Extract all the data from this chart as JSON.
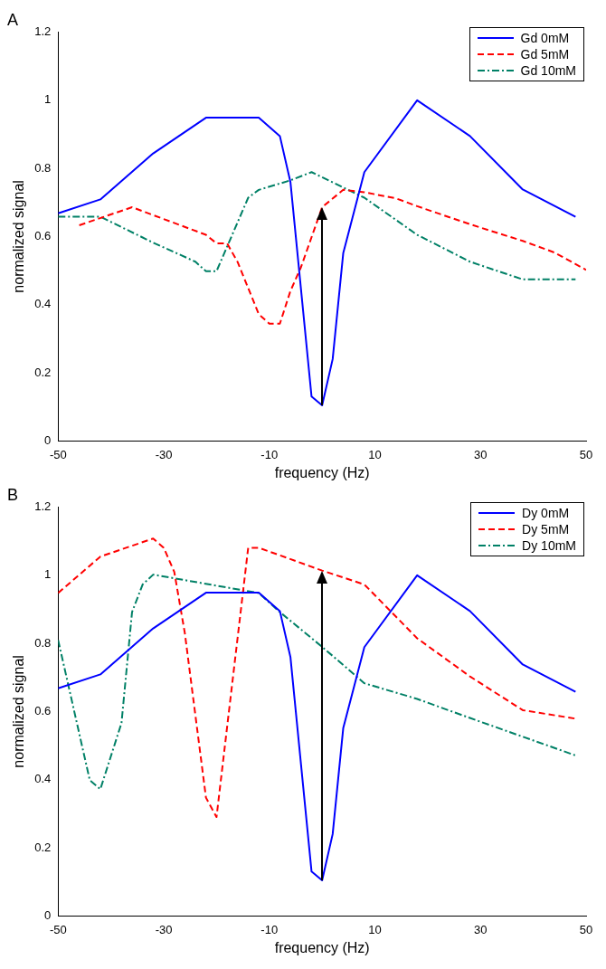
{
  "chart_data": [
    {
      "type": "line",
      "title": "A",
      "xlabel": "frequency (Hz)",
      "ylabel": "normalized signal",
      "xlim": [
        -50,
        50
      ],
      "xticks": [
        -50,
        -30,
        -10,
        10,
        30,
        50
      ],
      "ylim": [
        0,
        1.2
      ],
      "yticks": [
        0,
        0.2,
        0.4,
        0.6,
        0.8,
        1,
        1.2
      ],
      "legend": "top right",
      "series": [
        {
          "name": "Gd 0mM",
          "color": "#0000ff",
          "line_style": "solid",
          "x": [
            -50,
            -42,
            -32,
            -22,
            -12,
            -8,
            -6,
            -2,
            0,
            2,
            4,
            8,
            18,
            28,
            38,
            48
          ],
          "values": [
            0.668,
            0.709,
            0.844,
            0.949,
            0.949,
            0.895,
            0.76,
            0.13,
            0.104,
            0.24,
            0.551,
            0.789,
            1.0,
            0.895,
            0.738,
            0.658
          ]
        },
        {
          "name": "Gd 5mM",
          "color": "#ff0000",
          "line_style": "dashed",
          "x": [
            -46,
            -36,
            -22,
            -20,
            -18,
            -16,
            -12,
            -10,
            -8,
            -6,
            -4,
            0,
            4,
            8,
            14,
            18,
            28,
            38,
            44,
            50
          ],
          "values": [
            0.633,
            0.686,
            0.605,
            0.58,
            0.58,
            0.525,
            0.372,
            0.344,
            0.344,
            0.44,
            0.51,
            0.686,
            0.737,
            0.73,
            0.712,
            0.689,
            0.636,
            0.587,
            0.553,
            0.502
          ]
        },
        {
          "name": "Gd 10mM",
          "color": "#008066",
          "line_style": "dashdot",
          "x": [
            -50,
            -42,
            -32,
            -24,
            -22,
            -20,
            -14,
            -12,
            -6,
            -2,
            8,
            18,
            28,
            38,
            48
          ],
          "values": [
            0.658,
            0.658,
            0.582,
            0.526,
            0.498,
            0.498,
            0.714,
            0.737,
            0.765,
            0.789,
            0.714,
            0.605,
            0.526,
            0.474,
            0.474
          ]
        }
      ]
    },
    {
      "type": "line",
      "title": "B",
      "xlabel": "frequency (Hz)",
      "ylabel": "normalized signal",
      "xlim": [
        -50,
        50
      ],
      "xticks": [
        -50,
        -30,
        -10,
        10,
        30,
        50
      ],
      "ylim": [
        0,
        1.2
      ],
      "yticks": [
        0,
        0.2,
        0.4,
        0.6,
        0.8,
        1,
        1.2
      ],
      "legend": "top right",
      "series": [
        {
          "name": "Dy 0mM",
          "color": "#0000ff",
          "line_style": "solid",
          "x": [
            -50,
            -42,
            -32,
            -22,
            -12,
            -8,
            -6,
            -2,
            0,
            2,
            4,
            8,
            18,
            28,
            38,
            48
          ],
          "values": [
            0.668,
            0.709,
            0.844,
            0.949,
            0.949,
            0.895,
            0.76,
            0.13,
            0.104,
            0.24,
            0.551,
            0.789,
            1.0,
            0.895,
            0.738,
            0.658
          ]
        },
        {
          "name": "Dy 5mM",
          "color": "#ff0000",
          "line_style": "dashed",
          "x": [
            -50,
            -42,
            -32,
            -30,
            -28,
            -26,
            -22,
            -20,
            -14,
            -12,
            0,
            8,
            18,
            28,
            38,
            48
          ],
          "values": [
            0.948,
            1.055,
            1.108,
            1.081,
            1.01,
            0.83,
            0.347,
            0.29,
            1.081,
            1.081,
            1.014,
            0.973,
            0.815,
            0.703,
            0.604,
            0.579
          ]
        },
        {
          "name": "Dy 10mM",
          "color": "#008066",
          "line_style": "dashdot",
          "x": [
            -50,
            -44,
            -42,
            -38,
            -36,
            -34,
            -32,
            -12,
            -8,
            0,
            8,
            18,
            28,
            38,
            48
          ],
          "values": [
            0.81,
            0.398,
            0.372,
            0.566,
            0.892,
            0.973,
            1.002,
            0.948,
            0.892,
            0.79,
            0.683,
            0.637,
            0.581,
            0.526,
            0.471
          ]
        }
      ]
    }
  ]
}
